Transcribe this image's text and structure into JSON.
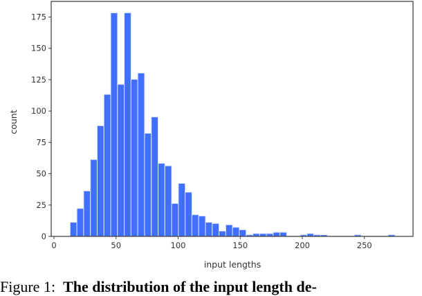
{
  "chart_data": {
    "type": "bar",
    "subtype": "histogram",
    "xlabel": "input lengths",
    "ylabel": "count",
    "xlim": [
      0,
      290
    ],
    "ylim": [
      0,
      185
    ],
    "xticks": [
      0,
      50,
      100,
      150,
      200,
      250
    ],
    "yticks": [
      0,
      25,
      50,
      75,
      100,
      125,
      150,
      175
    ],
    "bin_start": 13,
    "bin_width": 5.45,
    "values": [
      11,
      22,
      36,
      61,
      88,
      113,
      178,
      121,
      178,
      125,
      130,
      82,
      95,
      58,
      56,
      26,
      42,
      35,
      17,
      16,
      11,
      10,
      4,
      9,
      7,
      5,
      1,
      2,
      2,
      2,
      3,
      3,
      0,
      0,
      1,
      2,
      1,
      1,
      0,
      0,
      0,
      0,
      1,
      0,
      0,
      0,
      0,
      1
    ],
    "bar_color": "#416ffd",
    "edge_color": "#dce5ff",
    "grid": false
  },
  "caption": {
    "label": "Figure 1:",
    "text": "The distribution of the input length de-"
  }
}
